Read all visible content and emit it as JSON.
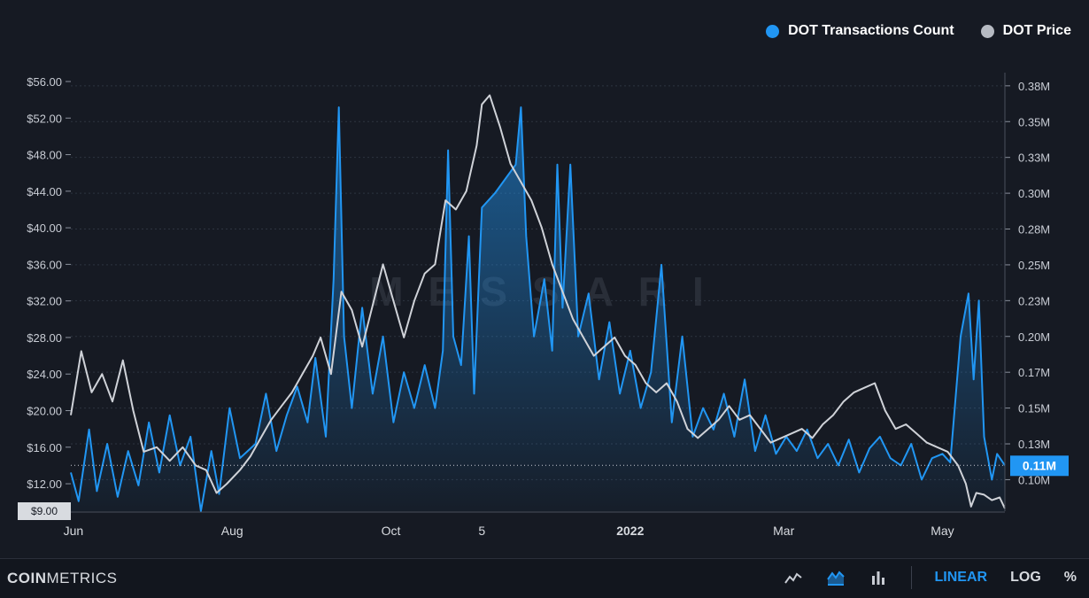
{
  "legend": {
    "tx_label": "DOT Transactions Count",
    "price_label": "DOT Price"
  },
  "watermark": "MESSARI",
  "footer": {
    "brand_bold": "COIN",
    "brand_light": "METRICS",
    "linear_label": "LINEAR",
    "log_label": "LOG",
    "percent_label": "%",
    "icons": [
      "line-chart-icon",
      "area-chart-icon",
      "bar-chart-icon"
    ]
  },
  "colors": {
    "tx": "#2196f3",
    "price": "#cfd2d8",
    "background": "#161a23",
    "grid": "#2e3440"
  },
  "current_value_tag": "0.11M",
  "price_bottom_tag": "$9.00",
  "chart_data": {
    "type": "line",
    "x_ticks": [
      "Jun",
      "Aug",
      "Oct",
      "5",
      "2022",
      "Mar",
      "May"
    ],
    "x_tick_dates": [
      "2021-06-01",
      "2021-08-01",
      "2021-10-01",
      "2021-11-05",
      "2022-01-01",
      "2022-03-01",
      "2022-05-01"
    ],
    "x_range": [
      "2021-05-31",
      "2022-05-25"
    ],
    "left_axis": {
      "label": "",
      "ticks": [
        "$12.00",
        "$16.00",
        "$20.00",
        "$24.00",
        "$28.00",
        "$32.00",
        "$36.00",
        "$40.00",
        "$44.00",
        "$48.00",
        "$52.00",
        "$56.00"
      ],
      "tick_values": [
        12,
        16,
        20,
        24,
        28,
        32,
        36,
        40,
        44,
        48,
        52,
        56
      ],
      "range": [
        9,
        56
      ]
    },
    "right_axis": {
      "label": "",
      "ticks": [
        "0.10M",
        "0.13M",
        "0.15M",
        "0.17M",
        "0.20M",
        "0.23M",
        "0.25M",
        "0.28M",
        "0.30M",
        "0.33M",
        "0.35M",
        "0.38M"
      ],
      "tick_values": [
        0.1,
        0.125,
        0.15,
        0.175,
        0.2,
        0.225,
        0.25,
        0.275,
        0.3,
        0.325,
        0.35,
        0.375
      ],
      "range": [
        0.078,
        0.378
      ]
    },
    "grid": true,
    "legend_position": "top-right",
    "series": [
      {
        "name": "DOT Transactions Count",
        "axis": "right",
        "style": "area",
        "points": [
          [
            "2021-05-31",
            0.105
          ],
          [
            "2021-06-03",
            0.085
          ],
          [
            "2021-06-07",
            0.135
          ],
          [
            "2021-06-10",
            0.092
          ],
          [
            "2021-06-14",
            0.125
          ],
          [
            "2021-06-18",
            0.088
          ],
          [
            "2021-06-22",
            0.12
          ],
          [
            "2021-06-26",
            0.096
          ],
          [
            "2021-06-30",
            0.14
          ],
          [
            "2021-07-04",
            0.105
          ],
          [
            "2021-07-08",
            0.145
          ],
          [
            "2021-07-12",
            0.11
          ],
          [
            "2021-07-16",
            0.13
          ],
          [
            "2021-07-20",
            0.078
          ],
          [
            "2021-07-24",
            0.12
          ],
          [
            "2021-07-27",
            0.09
          ],
          [
            "2021-07-31",
            0.15
          ],
          [
            "2021-08-04",
            0.115
          ],
          [
            "2021-08-10",
            0.125
          ],
          [
            "2021-08-14",
            0.16
          ],
          [
            "2021-08-18",
            0.12
          ],
          [
            "2021-08-22",
            0.145
          ],
          [
            "2021-08-26",
            0.165
          ],
          [
            "2021-08-30",
            0.14
          ],
          [
            "2021-09-02",
            0.185
          ],
          [
            "2021-09-06",
            0.13
          ],
          [
            "2021-09-09",
            0.24
          ],
          [
            "2021-09-11",
            0.36
          ],
          [
            "2021-09-13",
            0.2
          ],
          [
            "2021-09-16",
            0.15
          ],
          [
            "2021-09-20",
            0.22
          ],
          [
            "2021-09-24",
            0.16
          ],
          [
            "2021-09-28",
            0.2
          ],
          [
            "2021-10-02",
            0.14
          ],
          [
            "2021-10-06",
            0.175
          ],
          [
            "2021-10-10",
            0.15
          ],
          [
            "2021-10-14",
            0.18
          ],
          [
            "2021-10-18",
            0.15
          ],
          [
            "2021-10-21",
            0.19
          ],
          [
            "2021-10-23",
            0.33
          ],
          [
            "2021-10-25",
            0.2
          ],
          [
            "2021-10-28",
            0.18
          ],
          [
            "2021-10-31",
            0.27
          ],
          [
            "2021-11-02",
            0.16
          ],
          [
            "2021-11-05",
            0.29
          ],
          [
            "2021-11-10",
            0.3
          ],
          [
            "2021-11-14",
            0.31
          ],
          [
            "2021-11-18",
            0.32
          ],
          [
            "2021-11-20",
            0.36
          ],
          [
            "2021-11-22",
            0.27
          ],
          [
            "2021-11-25",
            0.2
          ],
          [
            "2021-11-29",
            0.24
          ],
          [
            "2021-12-02",
            0.19
          ],
          [
            "2021-12-04",
            0.32
          ],
          [
            "2021-12-06",
            0.22
          ],
          [
            "2021-12-09",
            0.32
          ],
          [
            "2021-12-12",
            0.2
          ],
          [
            "2021-12-16",
            0.23
          ],
          [
            "2021-12-20",
            0.17
          ],
          [
            "2021-12-24",
            0.21
          ],
          [
            "2021-12-28",
            0.16
          ],
          [
            "2022-01-01",
            0.19
          ],
          [
            "2022-01-05",
            0.15
          ],
          [
            "2022-01-09",
            0.175
          ],
          [
            "2022-01-13",
            0.25
          ],
          [
            "2022-01-17",
            0.14
          ],
          [
            "2022-01-21",
            0.2
          ],
          [
            "2022-01-25",
            0.13
          ],
          [
            "2022-01-29",
            0.15
          ],
          [
            "2022-02-02",
            0.135
          ],
          [
            "2022-02-06",
            0.16
          ],
          [
            "2022-02-10",
            0.13
          ],
          [
            "2022-02-14",
            0.17
          ],
          [
            "2022-02-18",
            0.12
          ],
          [
            "2022-02-22",
            0.145
          ],
          [
            "2022-02-26",
            0.118
          ],
          [
            "2022-03-02",
            0.13
          ],
          [
            "2022-03-06",
            0.12
          ],
          [
            "2022-03-10",
            0.135
          ],
          [
            "2022-03-14",
            0.115
          ],
          [
            "2022-03-18",
            0.125
          ],
          [
            "2022-03-22",
            0.11
          ],
          [
            "2022-03-26",
            0.128
          ],
          [
            "2022-03-30",
            0.105
          ],
          [
            "2022-04-03",
            0.122
          ],
          [
            "2022-04-07",
            0.13
          ],
          [
            "2022-04-11",
            0.115
          ],
          [
            "2022-04-15",
            0.11
          ],
          [
            "2022-04-19",
            0.125
          ],
          [
            "2022-04-23",
            0.1
          ],
          [
            "2022-04-27",
            0.115
          ],
          [
            "2022-05-01",
            0.118
          ],
          [
            "2022-05-04",
            0.112
          ],
          [
            "2022-05-08",
            0.2
          ],
          [
            "2022-05-11",
            0.23
          ],
          [
            "2022-05-13",
            0.17
          ],
          [
            "2022-05-15",
            0.225
          ],
          [
            "2022-05-17",
            0.13
          ],
          [
            "2022-05-20",
            0.1
          ],
          [
            "2022-05-22",
            0.118
          ],
          [
            "2022-05-25",
            0.11
          ]
        ]
      },
      {
        "name": "DOT Price",
        "axis": "left",
        "style": "line",
        "points": [
          [
            "2021-05-31",
            19.5
          ],
          [
            "2021-06-04",
            26.5
          ],
          [
            "2021-06-08",
            22
          ],
          [
            "2021-06-12",
            24
          ],
          [
            "2021-06-16",
            21
          ],
          [
            "2021-06-20",
            25.5
          ],
          [
            "2021-06-24",
            20
          ],
          [
            "2021-06-28",
            15.5
          ],
          [
            "2021-07-03",
            16
          ],
          [
            "2021-07-08",
            14.5
          ],
          [
            "2021-07-13",
            16
          ],
          [
            "2021-07-18",
            14
          ],
          [
            "2021-07-22",
            13.5
          ],
          [
            "2021-07-26",
            11
          ],
          [
            "2021-07-30",
            12
          ],
          [
            "2021-08-04",
            13.5
          ],
          [
            "2021-08-08",
            15
          ],
          [
            "2021-08-12",
            17
          ],
          [
            "2021-08-16",
            19
          ],
          [
            "2021-08-20",
            20.5
          ],
          [
            "2021-08-24",
            22
          ],
          [
            "2021-08-28",
            24
          ],
          [
            "2021-09-01",
            26
          ],
          [
            "2021-09-04",
            28
          ],
          [
            "2021-09-08",
            24
          ],
          [
            "2021-09-12",
            33
          ],
          [
            "2021-09-16",
            31
          ],
          [
            "2021-09-20",
            27
          ],
          [
            "2021-09-24",
            31.5
          ],
          [
            "2021-09-28",
            36
          ],
          [
            "2021-10-02",
            32
          ],
          [
            "2021-10-06",
            28
          ],
          [
            "2021-10-10",
            32
          ],
          [
            "2021-10-14",
            35
          ],
          [
            "2021-10-18",
            36
          ],
          [
            "2021-10-22",
            43
          ],
          [
            "2021-10-26",
            42
          ],
          [
            "2021-10-30",
            44
          ],
          [
            "2021-11-03",
            49
          ],
          [
            "2021-11-05",
            53.5
          ],
          [
            "2021-11-08",
            54.5
          ],
          [
            "2021-11-12",
            51
          ],
          [
            "2021-11-16",
            47
          ],
          [
            "2021-11-20",
            45
          ],
          [
            "2021-11-24",
            43
          ],
          [
            "2021-11-28",
            40
          ],
          [
            "2021-12-02",
            36
          ],
          [
            "2021-12-06",
            33
          ],
          [
            "2021-12-10",
            30
          ],
          [
            "2021-12-14",
            28
          ],
          [
            "2021-12-18",
            26
          ],
          [
            "2021-12-22",
            27
          ],
          [
            "2021-12-26",
            28
          ],
          [
            "2021-12-30",
            26
          ],
          [
            "2022-01-03",
            25
          ],
          [
            "2022-01-07",
            23
          ],
          [
            "2022-01-11",
            22
          ],
          [
            "2022-01-15",
            23
          ],
          [
            "2022-01-19",
            21
          ],
          [
            "2022-01-23",
            18
          ],
          [
            "2022-01-27",
            17
          ],
          [
            "2022-01-31",
            18
          ],
          [
            "2022-02-04",
            19
          ],
          [
            "2022-02-08",
            20.5
          ],
          [
            "2022-02-12",
            19
          ],
          [
            "2022-02-16",
            19.5
          ],
          [
            "2022-02-20",
            18
          ],
          [
            "2022-02-24",
            16.5
          ],
          [
            "2022-02-28",
            17
          ],
          [
            "2022-03-04",
            17.5
          ],
          [
            "2022-03-08",
            18
          ],
          [
            "2022-03-12",
            17
          ],
          [
            "2022-03-16",
            18.5
          ],
          [
            "2022-03-20",
            19.5
          ],
          [
            "2022-03-24",
            21
          ],
          [
            "2022-03-28",
            22
          ],
          [
            "2022-04-01",
            22.5
          ],
          [
            "2022-04-05",
            23
          ],
          [
            "2022-04-09",
            20
          ],
          [
            "2022-04-13",
            18
          ],
          [
            "2022-04-17",
            18.5
          ],
          [
            "2022-04-21",
            17.5
          ],
          [
            "2022-04-25",
            16.5
          ],
          [
            "2022-04-29",
            16
          ],
          [
            "2022-05-03",
            15.5
          ],
          [
            "2022-05-07",
            14
          ],
          [
            "2022-05-10",
            12
          ],
          [
            "2022-05-12",
            9.5
          ],
          [
            "2022-05-14",
            11
          ],
          [
            "2022-05-17",
            10.8
          ],
          [
            "2022-05-20",
            10.2
          ],
          [
            "2022-05-23",
            10.5
          ],
          [
            "2022-05-25",
            9.3
          ]
        ]
      }
    ]
  }
}
